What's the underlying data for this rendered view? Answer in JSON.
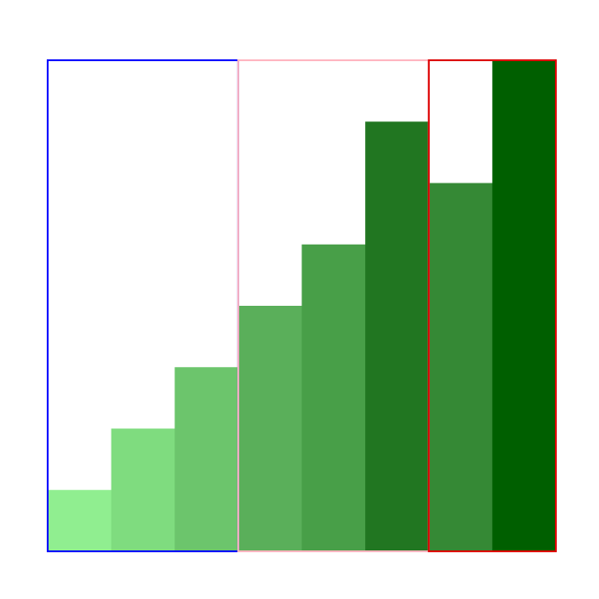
{
  "chart_data": {
    "type": "bar",
    "values": [
      1,
      2,
      3,
      4,
      5,
      7,
      6,
      8
    ],
    "ylim": [
      0,
      8
    ],
    "colors": [
      "#90ee90",
      "#7fdc7f",
      "#6cc56c",
      "#5aaf5a",
      "#489f48",
      "#217621",
      "#358935",
      "#005f00"
    ],
    "groups": [
      {
        "start": 0,
        "end": 2,
        "border_color": "#0000ff"
      },
      {
        "start": 3,
        "end": 5,
        "border_color": "#ffb6c1"
      },
      {
        "start": 6,
        "end": 7,
        "border_color": "#dd0000"
      }
    ],
    "xlabel": "",
    "ylabel": "",
    "title": "",
    "grid": false
  }
}
